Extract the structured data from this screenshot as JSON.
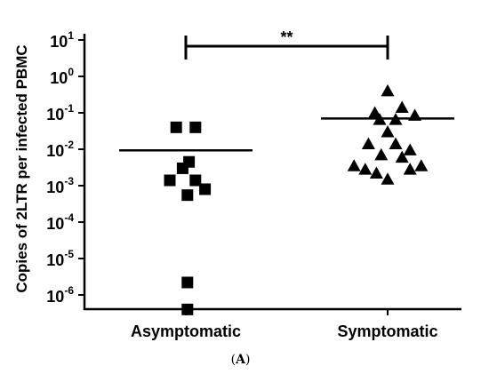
{
  "chart_data": {
    "type": "scatter",
    "ylabel": "Copies of 2LTR per infected PBMC",
    "yscale": "log",
    "ylim": [
      3e-07,
      10
    ],
    "yticks": [
      {
        "value": 10.0,
        "base": "10",
        "exp": "1"
      },
      {
        "value": 1.0,
        "base": "10",
        "exp": "0"
      },
      {
        "value": 0.1,
        "base": "10",
        "exp": "-1"
      },
      {
        "value": 0.01,
        "base": "10",
        "exp": "-2"
      },
      {
        "value": 0.001,
        "base": "10",
        "exp": "-3"
      },
      {
        "value": 0.0001,
        "base": "10",
        "exp": "-4"
      },
      {
        "value": 1e-05,
        "base": "10",
        "exp": "-5"
      },
      {
        "value": 1e-06,
        "base": "10",
        "exp": "-6"
      }
    ],
    "categories": [
      "Asymptomatic",
      "Symptomatic"
    ],
    "series": [
      {
        "category": "Asymptomatic",
        "marker": "square",
        "mean": 0.0093,
        "points": [
          {
            "jitter": -0.3,
            "y": 0.04
          },
          {
            "jitter": 0.3,
            "y": 0.04
          },
          {
            "jitter": 0.1,
            "y": 0.0045
          },
          {
            "jitter": -0.1,
            "y": 0.003
          },
          {
            "jitter": -0.5,
            "y": 0.0014
          },
          {
            "jitter": 0.3,
            "y": 0.0014
          },
          {
            "jitter": 0.6,
            "y": 0.0008
          },
          {
            "jitter": 0.05,
            "y": 0.00055
          },
          {
            "jitter": 0.05,
            "y": 2.2e-06
          },
          {
            "jitter": 0.05,
            "y": 4e-07
          }
        ]
      },
      {
        "category": "Symptomatic",
        "marker": "triangle",
        "mean": 0.07,
        "points": [
          {
            "jitter": 0.0,
            "y": 0.4
          },
          {
            "jitter": -0.4,
            "y": 0.1
          },
          {
            "jitter": 0.45,
            "y": 0.14
          },
          {
            "jitter": -0.25,
            "y": 0.065
          },
          {
            "jitter": 0.25,
            "y": 0.065
          },
          {
            "jitter": 0.85,
            "y": 0.085
          },
          {
            "jitter": 0.0,
            "y": 0.03
          },
          {
            "jitter": -0.6,
            "y": 0.014
          },
          {
            "jitter": 0.25,
            "y": 0.014
          },
          {
            "jitter": 0.7,
            "y": 0.0095
          },
          {
            "jitter": -0.2,
            "y": 0.007
          },
          {
            "jitter": 0.45,
            "y": 0.006
          },
          {
            "jitter": -1.05,
            "y": 0.0035
          },
          {
            "jitter": -0.7,
            "y": 0.0028
          },
          {
            "jitter": 0.7,
            "y": 0.0028
          },
          {
            "jitter": 1.05,
            "y": 0.0035
          },
          {
            "jitter": -0.35,
            "y": 0.0022
          },
          {
            "jitter": 0.0,
            "y": 0.0015
          }
        ]
      }
    ],
    "significance": {
      "label": "**",
      "from": "Asymptomatic",
      "to": "Symptomatic"
    }
  },
  "caption": {
    "label": "A",
    "open": "(",
    "close": ")"
  }
}
